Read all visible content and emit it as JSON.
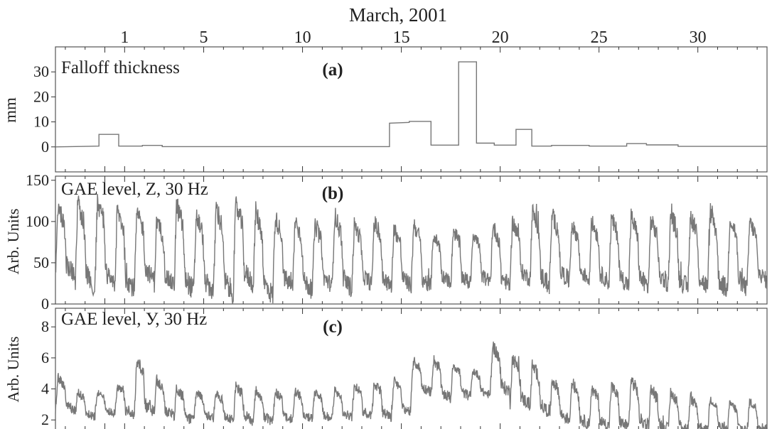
{
  "chart_data": [
    {
      "type": "line",
      "panel_label": "(a)",
      "title": "Falloff thickness",
      "ylabel": "mm",
      "top_axis_label": "March,  2001",
      "x_ticklabels": [
        "1",
        "5",
        "10",
        "15",
        "20",
        "25",
        "30"
      ],
      "xlim": [
        -2.5,
        33.5
      ],
      "ylim": [
        -10,
        40
      ],
      "yticks": [
        0,
        10,
        20,
        30
      ],
      "x": [
        -2.5,
        -0.3,
        -0.3,
        0.7,
        0.7,
        1.9,
        1.9,
        2.9,
        2.9,
        14.4,
        14.4,
        15.4,
        15.4,
        16.5,
        16.5,
        17.9,
        17.9,
        18.8,
        18.8,
        19.7,
        19.7,
        20.8,
        20.8,
        21.6,
        21.6,
        22.6,
        22.6,
        24.5,
        24.5,
        26.4,
        26.4,
        27.4,
        27.4,
        29.0,
        29.0,
        33.5
      ],
      "y": [
        0,
        0.3,
        5,
        5,
        0.3,
        0.3,
        0.6,
        0.6,
        0.1,
        0.1,
        9.5,
        9.8,
        10.2,
        10.2,
        0.7,
        0.7,
        34,
        34,
        1.5,
        1.5,
        0.7,
        0.7,
        7,
        7,
        0.3,
        0.3,
        0.6,
        0.6,
        0.3,
        0.3,
        1.3,
        1.3,
        0.8,
        0.8,
        0.2,
        0.2
      ],
      "color": "#777777"
    },
    {
      "type": "line",
      "panel_label": "(b)",
      "title": "GAE level, Z, 30 Hz",
      "ylabel": "Arb.  Units",
      "xlim": [
        -2.5,
        33.5
      ],
      "ylim": [
        0,
        155
      ],
      "yticks": [
        0,
        50,
        100,
        150
      ],
      "daily_high": [
        118,
        122,
        125,
        115,
        110,
        102,
        120,
        108,
        118,
        120,
        112,
        105,
        102,
        95,
        108,
        96,
        100,
        92,
        98,
        84,
        90,
        86,
        95,
        100,
        112,
        108,
        96,
        100,
        104,
        106,
        102,
        110,
        108,
        112,
        105,
        100
      ],
      "daily_low": [
        35,
        20,
        25,
        18,
        30,
        22,
        16,
        14,
        12,
        25,
        10,
        20,
        16,
        22,
        18,
        24,
        20,
        22,
        20,
        26,
        24,
        26,
        22,
        30,
        22,
        28,
        30,
        26,
        22,
        20,
        24,
        18,
        20,
        16,
        18,
        28
      ],
      "color": "#777777"
    },
    {
      "type": "line",
      "panel_label": "(c)",
      "title": "GAE level, У, 30 Hz",
      "ylabel": "Arb.  Units",
      "xlim": [
        -2.5,
        33.5
      ],
      "ylim": [
        0.5,
        9.2
      ],
      "yticks": [
        2,
        4,
        6,
        8
      ],
      "daily_high": [
        4.8,
        3.8,
        3.8,
        4.2,
        6.0,
        4.6,
        4.0,
        3.8,
        3.7,
        4.2,
        3.9,
        3.8,
        3.9,
        3.8,
        3.9,
        4.2,
        4.4,
        4.5,
        5.8,
        5.9,
        5.6,
        5.2,
        6.8,
        6.0,
        5.5,
        4.6,
        4.4,
        4.0,
        4.2,
        4.6,
        4.0,
        3.8,
        3.4,
        3.4,
        3.1,
        3.2
      ],
      "daily_low": [
        2.6,
        2.2,
        2.4,
        2.3,
        2.5,
        2.3,
        2.0,
        2.1,
        2.0,
        1.9,
        1.9,
        2.0,
        2.1,
        2.1,
        2.2,
        2.3,
        2.2,
        2.5,
        3.8,
        3.4,
        3.5,
        3.6,
        3.8,
        3.0,
        2.5,
        2.0,
        1.7,
        1.6,
        1.5,
        1.6,
        1.4,
        1.4,
        1.3,
        1.3,
        1.3,
        1.4
      ],
      "color": "#777777"
    }
  ]
}
